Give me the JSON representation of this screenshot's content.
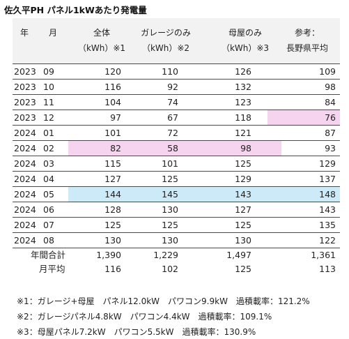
{
  "title": "佐久平PH パネル1kWあたり発電量",
  "headers": {
    "year": "年",
    "month": "月",
    "col1_line1": "全体",
    "col1_line2": "（kWh）※1",
    "col2_line1": "ガレージのみ",
    "col2_line2": "（kWh）※2",
    "col3_line1": "母屋のみ",
    "col3_line2": "（kWh）※3",
    "col4_line1": "参考：",
    "col4_line2": "長野県平均"
  },
  "rows": [
    {
      "year": "2023",
      "month": "09",
      "total": "120",
      "garage": "110",
      "main": "126",
      "nagano": "109"
    },
    {
      "year": "2023",
      "month": "10",
      "total": "116",
      "garage": "92",
      "main": "132",
      "nagano": "98"
    },
    {
      "year": "2023",
      "month": "11",
      "total": "104",
      "garage": "74",
      "main": "123",
      "nagano": "84"
    },
    {
      "year": "2023",
      "month": "12",
      "total": "97",
      "garage": "67",
      "main": "118",
      "nagano": "76"
    },
    {
      "year": "2024",
      "month": "01",
      "total": "101",
      "garage": "72",
      "main": "121",
      "nagano": "87"
    },
    {
      "year": "2024",
      "month": "02",
      "total": "82",
      "garage": "58",
      "main": "98",
      "nagano": "93"
    },
    {
      "year": "2024",
      "month": "03",
      "total": "115",
      "garage": "101",
      "main": "125",
      "nagano": "129"
    },
    {
      "year": "2024",
      "month": "04",
      "total": "127",
      "garage": "125",
      "main": "129",
      "nagano": "137"
    },
    {
      "year": "2024",
      "month": "05",
      "total": "144",
      "garage": "145",
      "main": "143",
      "nagano": "148"
    },
    {
      "year": "2024",
      "month": "06",
      "total": "128",
      "garage": "130",
      "main": "127",
      "nagano": "143"
    },
    {
      "year": "2024",
      "month": "07",
      "total": "125",
      "garage": "125",
      "main": "125",
      "nagano": "135"
    },
    {
      "year": "2024",
      "month": "08",
      "total": "130",
      "garage": "130",
      "main": "130",
      "nagano": "122"
    }
  ],
  "summary": {
    "annual_label": "年間合計",
    "annual": {
      "total": "1,390",
      "garage": "1,229",
      "main": "1,497",
      "nagano": "1,361"
    },
    "monthly_label": "月平均",
    "monthly": {
      "total": "116",
      "garage": "102",
      "main": "125",
      "nagano": "113"
    }
  },
  "notes": [
    "※1：ガレージ+母屋　パネル12.0kW　パワコン9.9kW　過積載率：121.2%",
    "※2：ガレージパネル4.8kW　パワコン4.4kW　過積載率：109.1%",
    "※3：母屋パネル7.2kW　パワコン5.5kW　過積載率：130.9%"
  ],
  "colors": {
    "pink_highlight": "#f6d3ef",
    "blue_highlight": "#cdeaf8",
    "header_bg": "#f2f2f2"
  }
}
